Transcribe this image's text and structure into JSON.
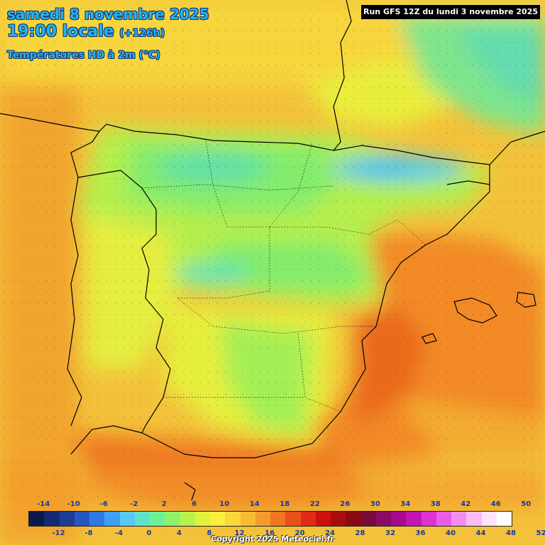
{
  "header": {
    "date_line": "samedi 8 novembre 2025",
    "time_line": "19:00 locale",
    "lead_time": "(+126h)",
    "parameter": "Températures HD à 2m (°C)",
    "run_info": "Run GFS 12Z du lundi 3 novembre 2025"
  },
  "legend": {
    "labels_top": [
      "-14",
      "-10",
      "-6",
      "-2",
      "2",
      "6",
      "10",
      "14",
      "18",
      "22",
      "26",
      "30",
      "34",
      "38",
      "42",
      "46",
      "50"
    ],
    "labels_bottom": [
      "-12",
      "-8",
      "-4",
      "0",
      "4",
      "8",
      "12",
      "16",
      "20",
      "24",
      "28",
      "32",
      "36",
      "40",
      "44",
      "48",
      "52"
    ],
    "colors": [
      "#0b1a4a",
      "#142a70",
      "#1c3d96",
      "#2457c2",
      "#2f78e6",
      "#3f9ff5",
      "#58c8f7",
      "#5fe3c8",
      "#6ef09a",
      "#8ef26a",
      "#b8f24a",
      "#e2f23a",
      "#f9ef3d",
      "#f9d93a",
      "#f7bc33",
      "#f49b2c",
      "#ef7722",
      "#e9511b",
      "#e12a14",
      "#cc1010",
      "#a80d0d",
      "#8a0a14",
      "#7a0a3a",
      "#8a0a66",
      "#a40a8e",
      "#c214b4",
      "#dc33d4",
      "#ea5ce6",
      "#f28ef0",
      "#f8bcf6",
      "#fde4fc",
      "#ffffff"
    ]
  },
  "copyright": "Copyright 2025 Meteociel.fr"
}
